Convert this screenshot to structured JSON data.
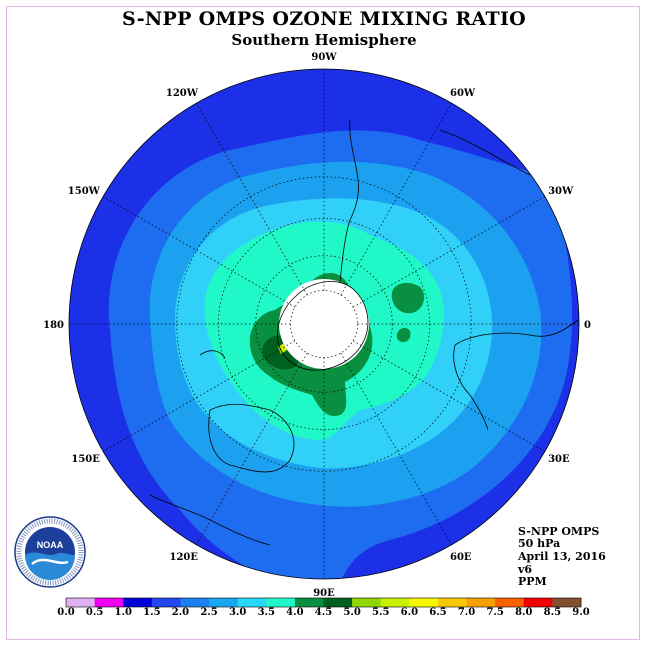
{
  "title": "S-NPP OMPS OZONE MIXING RATIO",
  "subtitle": "Southern Hemisphere",
  "info": {
    "instrument": "S-NPP OMPS",
    "level": "50 hPa",
    "date": "April 13, 2016",
    "version": "v6",
    "unit": "PPM"
  },
  "logo": {
    "text": "NOAA",
    "ring_text": "NATIONAL OCEANIC AND ATMOSPHERIC ADMINISTRATION · U.S. DEPARTMENT OF COMMERCE"
  },
  "longitude_labels": [
    {
      "lon": 0,
      "label": "0"
    },
    {
      "lon": 30,
      "label": "30E"
    },
    {
      "lon": 60,
      "label": "60E"
    },
    {
      "lon": 90,
      "label": "90E"
    },
    {
      "lon": 120,
      "label": "120E"
    },
    {
      "lon": 150,
      "label": "150E"
    },
    {
      "lon": 180,
      "label": "180"
    },
    {
      "lon": -150,
      "label": "150W"
    },
    {
      "lon": -120,
      "label": "120W"
    },
    {
      "lon": -90,
      "label": "90W"
    },
    {
      "lon": -60,
      "label": "60W"
    },
    {
      "lon": -30,
      "label": "30W"
    }
  ],
  "colorbar": {
    "ticks": [
      "0.0",
      "0.5",
      "1.0",
      "1.5",
      "2.0",
      "2.5",
      "3.0",
      "3.5",
      "4.0",
      "4.5",
      "5.0",
      "5.5",
      "6.0",
      "6.5",
      "7.0",
      "7.5",
      "8.0",
      "8.5",
      "9.0"
    ],
    "colors": [
      "#c080f0",
      "#e0b0f0",
      "#f000f0",
      "#0000d8",
      "#2448f0",
      "#1c80f0",
      "#18a8f0",
      "#28d8f8",
      "#20f8c8",
      "#089040",
      "#006020",
      "#90d800",
      "#c8f000",
      "#f8f800",
      "#f8c800",
      "#f8a000",
      "#f86000",
      "#f00000",
      "#805030"
    ]
  },
  "map": {
    "projection": "south-polar-stereographic",
    "levels_ppm": [
      2.0,
      2.5,
      3.0,
      3.5,
      4.0,
      4.5,
      5.0
    ],
    "polar_no_data": true,
    "graticule_latitudes": [
      -30,
      -45,
      -60,
      -75
    ]
  }
}
